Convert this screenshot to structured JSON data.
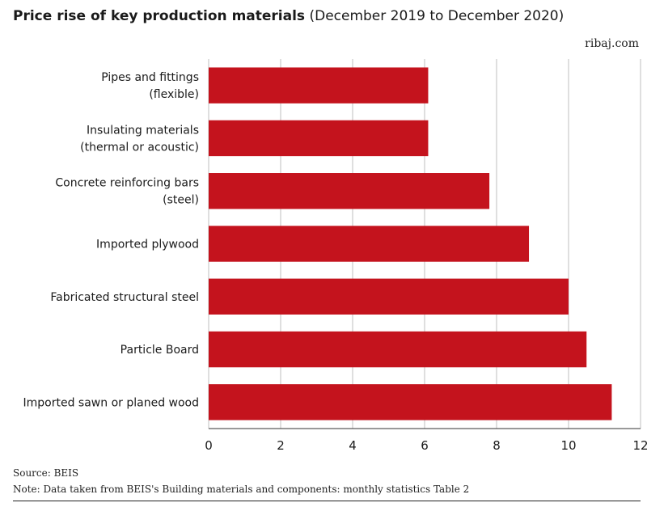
{
  "header": {
    "title_bold": "Price rise of key production materials",
    "title_rest": "(December 2019 to December 2020)",
    "site": "ribaj.com"
  },
  "footer": {
    "source": "Source: BEIS",
    "note": "Note: Data taken from BEIS's Building materials and components: monthly statistics Table 2"
  },
  "chart_data": {
    "type": "bar",
    "orientation": "horizontal",
    "categories": [
      [
        "Pipes and fittings",
        "(flexible)"
      ],
      [
        "Insulating materials",
        "(thermal or acoustic)"
      ],
      [
        "Concrete reinforcing bars",
        "(steel)"
      ],
      [
        "Imported plywood"
      ],
      [
        "Fabricated structural steel"
      ],
      [
        "Particle Board"
      ],
      [
        "Imported sawn or planed wood"
      ]
    ],
    "values": [
      6.1,
      6.1,
      7.8,
      8.9,
      10.0,
      10.5,
      11.2
    ],
    "xlim": [
      0,
      12
    ],
    "xticks": [
      0,
      2,
      4,
      6,
      8,
      10,
      12
    ],
    "grid": true,
    "bar_color": "#c4131d",
    "grid_color": "#bfbfbf"
  }
}
